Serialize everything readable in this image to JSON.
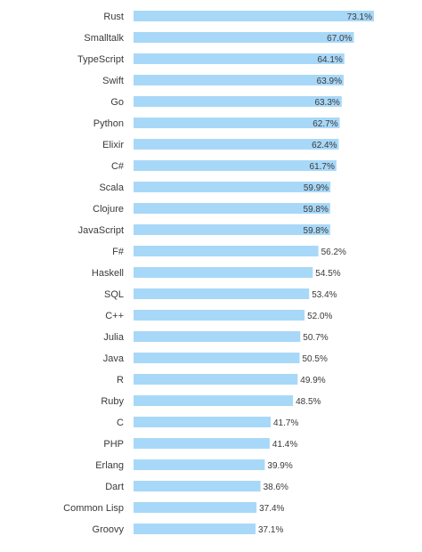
{
  "chart_data": {
    "type": "bar",
    "orientation": "horizontal",
    "title": "",
    "xlabel": "",
    "ylabel": "",
    "categories": [
      "Rust",
      "Smalltalk",
      "TypeScript",
      "Swift",
      "Go",
      "Python",
      "Elixir",
      "C#",
      "Scala",
      "Clojure",
      "JavaScript",
      "F#",
      "Haskell",
      "SQL",
      "C++",
      "Julia",
      "Java",
      "R",
      "Ruby",
      "C",
      "PHP",
      "Erlang",
      "Dart",
      "Common Lisp",
      "Groovy"
    ],
    "values": [
      73.1,
      67.0,
      64.1,
      63.9,
      63.3,
      62.7,
      62.4,
      61.7,
      59.9,
      59.8,
      59.8,
      56.2,
      54.5,
      53.4,
      52.0,
      50.7,
      50.5,
      49.9,
      48.5,
      41.7,
      41.4,
      39.9,
      38.6,
      37.4,
      37.1
    ],
    "value_labels": [
      "73.1%",
      "67.0%",
      "64.1%",
      "63.9%",
      "63.3%",
      "62.7%",
      "62.4%",
      "61.7%",
      "59.9%",
      "59.8%",
      "59.8%",
      "56.2%",
      "54.5%",
      "53.4%",
      "52.0%",
      "50.7%",
      "50.5%",
      "49.9%",
      "48.5%",
      "41.7%",
      "41.4%",
      "39.9%",
      "38.6%",
      "37.4%",
      "37.1%"
    ],
    "xlim": [
      0,
      73.1
    ],
    "grid": false,
    "legend": "none",
    "bar_color": "#a8d8f8",
    "label_color": "#3a3a3a"
  }
}
